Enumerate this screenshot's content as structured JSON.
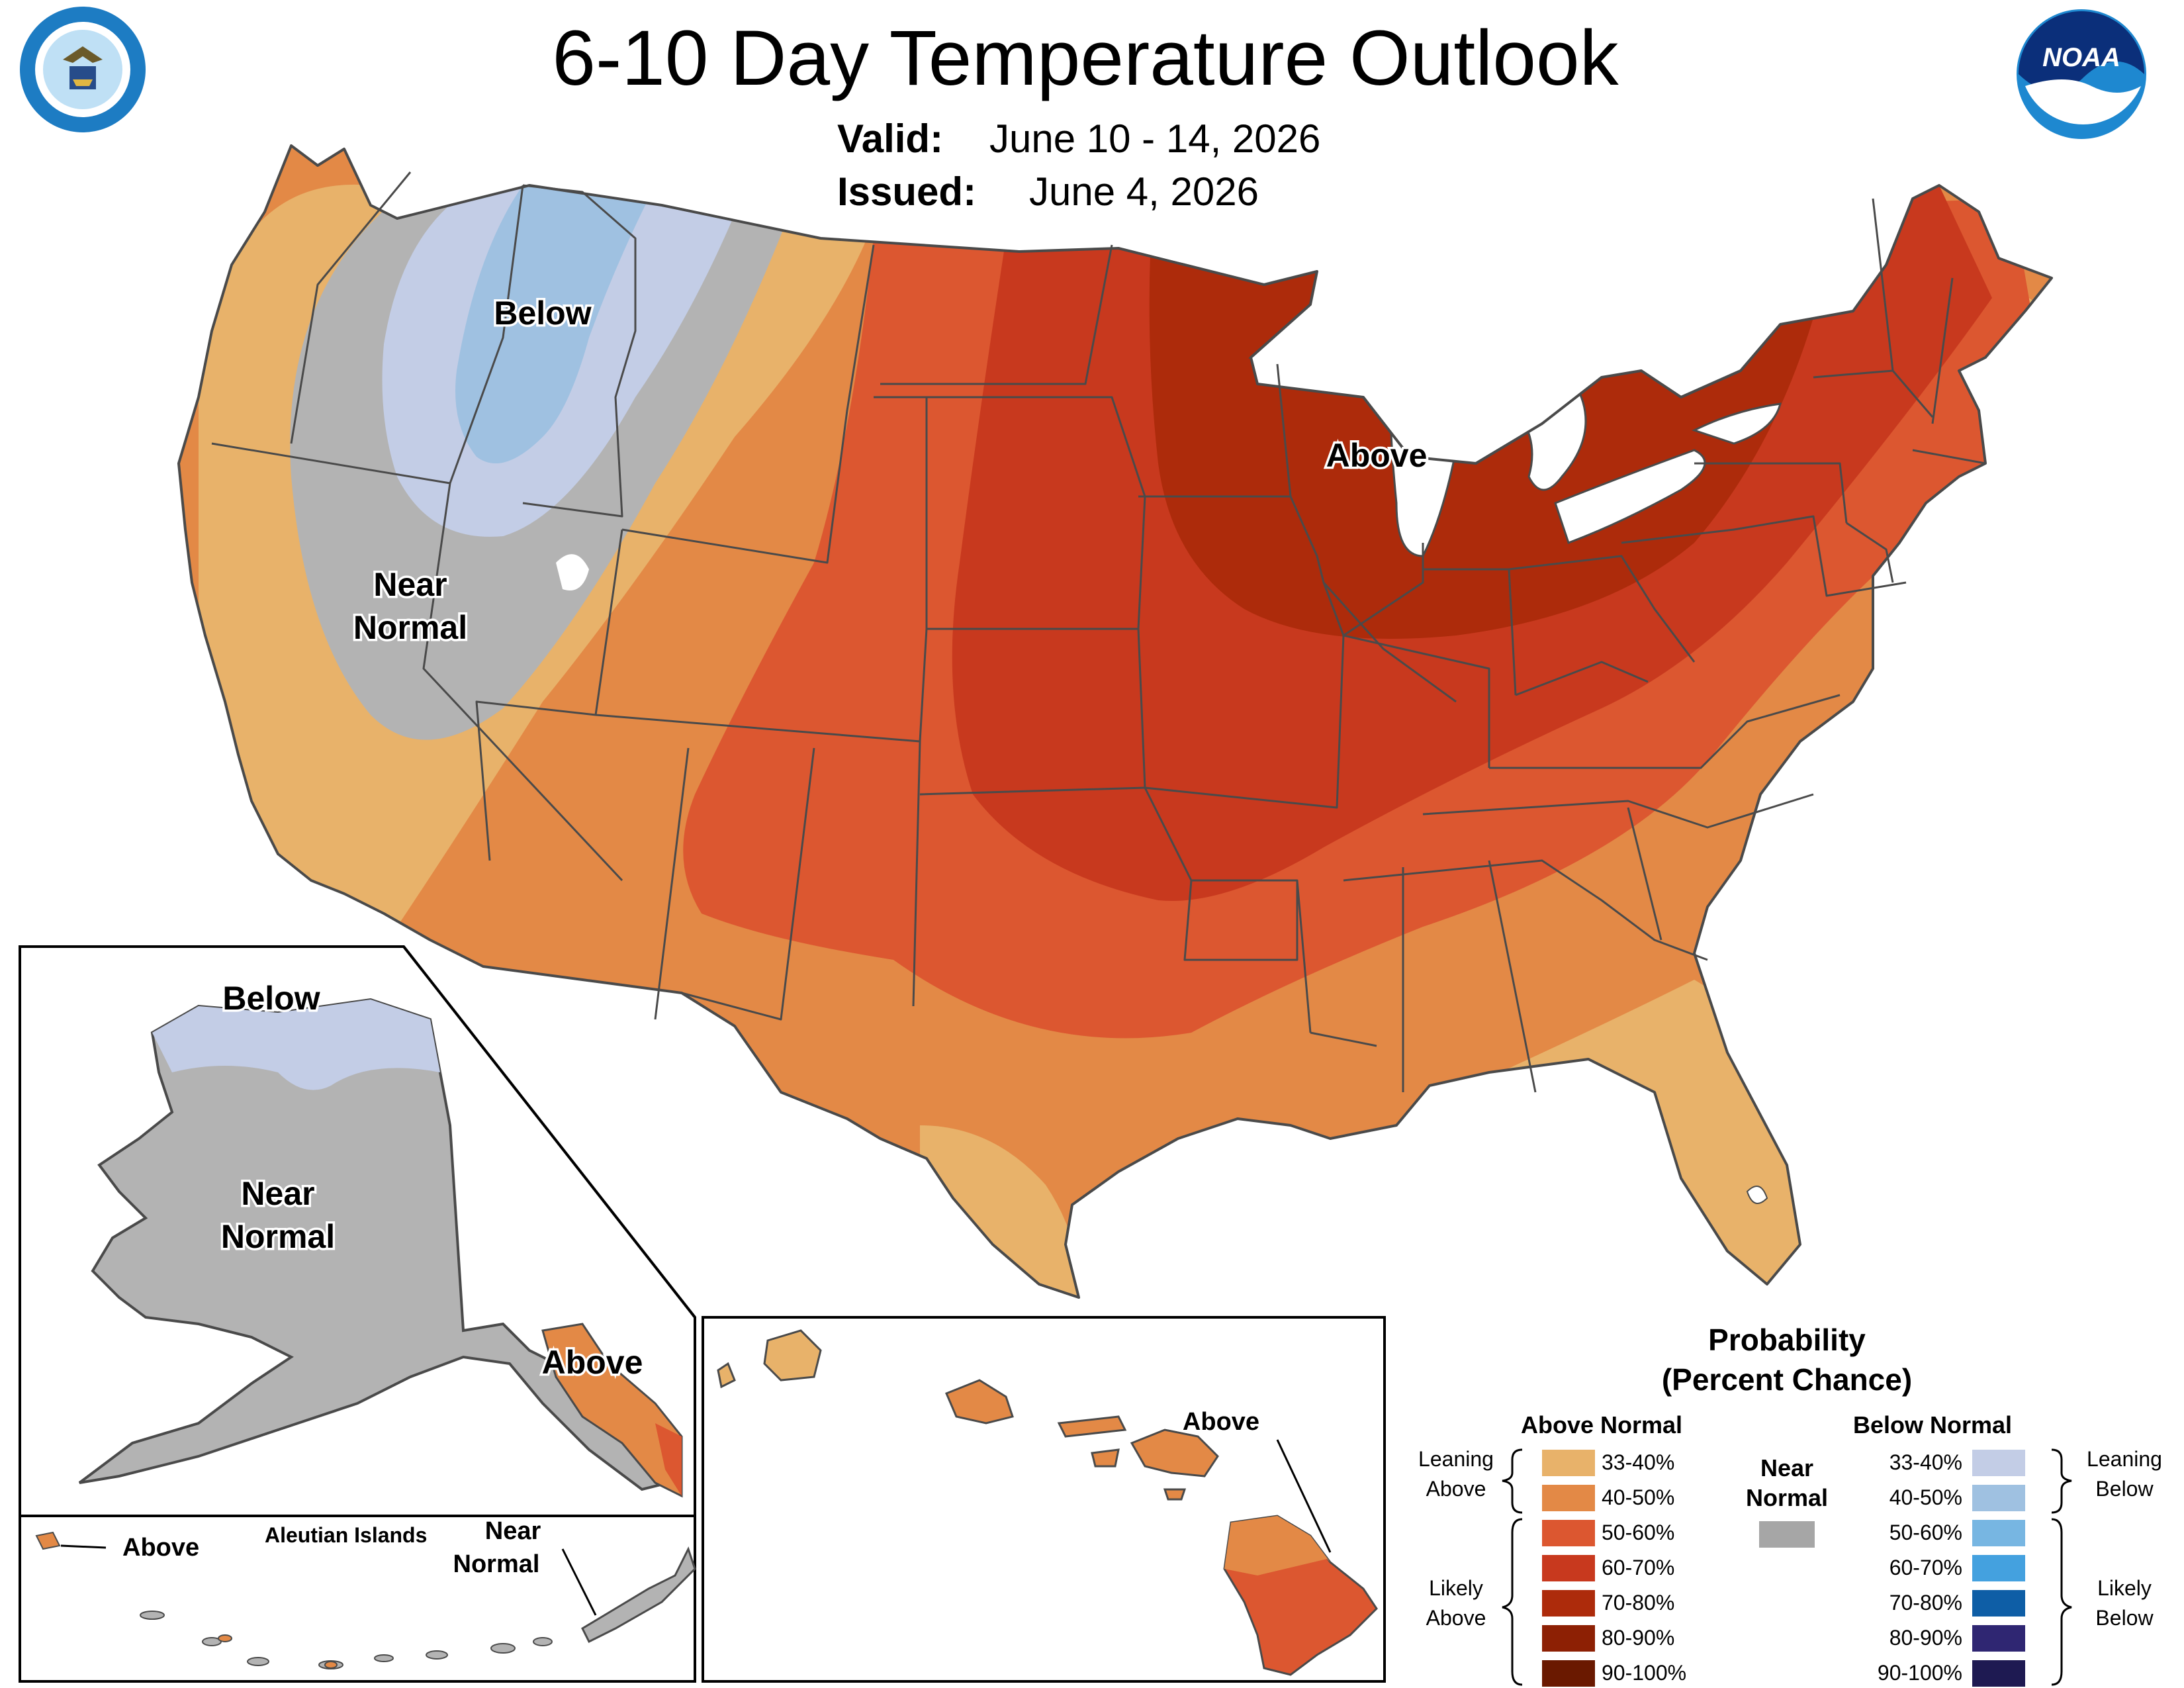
{
  "header": {
    "title": "6-10 Day Temperature Outlook",
    "valid_label": "Valid:",
    "valid_value": "June 10 - 14, 2026",
    "issued_label": "Issued:",
    "issued_value": "June 4, 2026"
  },
  "logos": {
    "left_seal_text": "DEPARTMENT OF COMMERCE · UNITED STATES OF AMERICA",
    "right_logo_text": "NOAA"
  },
  "map_labels": {
    "conus_below": "Below",
    "conus_near_1": "Near",
    "conus_near_2": "Normal",
    "conus_above": "Above",
    "ak_below": "Below",
    "ak_near_1": "Near",
    "ak_near_2": "Normal",
    "ak_above": "Above",
    "aleutian_title": "Aleutian Islands",
    "aleutian_above": "Above",
    "aleutian_near_1": "Near",
    "aleutian_near_2": "Normal",
    "hawaii_above": "Above"
  },
  "legend": {
    "title_1": "Probability",
    "title_2": "(Percent Chance)",
    "above_header": "Above Normal",
    "below_header": "Below Normal",
    "near_1": "Near",
    "near_2": "Normal",
    "leaning_above_1": "Leaning",
    "leaning_above_2": "Above",
    "likely_above_1": "Likely",
    "likely_above_2": "Above",
    "leaning_below_1": "Leaning",
    "leaning_below_2": "Below",
    "likely_below_1": "Likely",
    "likely_below_2": "Below",
    "near_color": "#a6a6a6",
    "above": [
      {
        "range": "33-40%",
        "color": "#e8b26a"
      },
      {
        "range": "40-50%",
        "color": "#e38946"
      },
      {
        "range": "50-60%",
        "color": "#dc5730"
      },
      {
        "range": "60-70%",
        "color": "#c8391e"
      },
      {
        "range": "70-80%",
        "color": "#ad2b0b"
      },
      {
        "range": "80-90%",
        "color": "#8d2004"
      },
      {
        "range": "90-100%",
        "color": "#6a1900"
      }
    ],
    "below": [
      {
        "range": "33-40%",
        "color": "#c3cde6"
      },
      {
        "range": "40-50%",
        "color": "#9fc1e1"
      },
      {
        "range": "50-60%",
        "color": "#77b6e2"
      },
      {
        "range": "60-70%",
        "color": "#44a1df"
      },
      {
        "range": "70-80%",
        "color": "#0e5ea6"
      },
      {
        "range": "80-90%",
        "color": "#2f2672"
      },
      {
        "range": "90-100%",
        "color": "#1e1a52"
      }
    ]
  },
  "colors": {
    "near_normal": "#b3b3b3",
    "lakes": "#ffffff",
    "border": "#4a4a4a"
  }
}
